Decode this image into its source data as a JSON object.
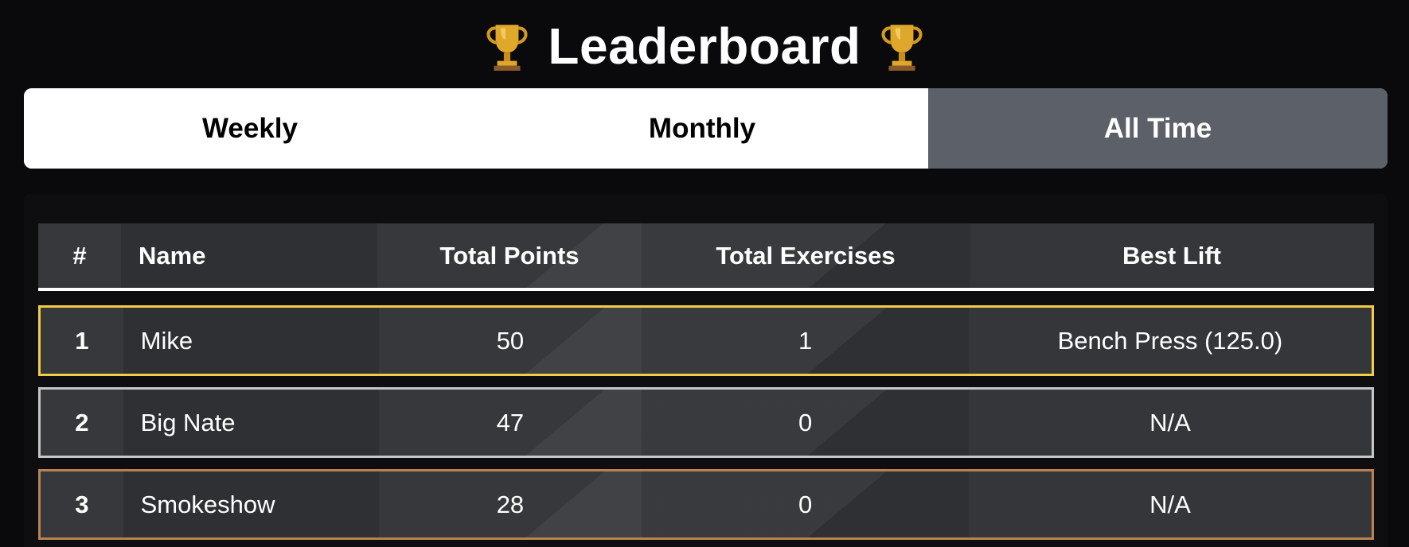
{
  "header": {
    "title": "Leaderboard",
    "trophy_icon": "trophy-icon"
  },
  "tabs": [
    {
      "label": "Weekly",
      "active": false
    },
    {
      "label": "Monthly",
      "active": false
    },
    {
      "label": "All Time",
      "active": true
    }
  ],
  "table": {
    "columns": [
      "#",
      "Name",
      "Total Points",
      "Total Exercises",
      "Best Lift"
    ],
    "rows": [
      {
        "rank": "1",
        "name": "Mike",
        "points": "50",
        "exercises": "1",
        "best_lift": "Bench Press (125.0)",
        "medal": "gold"
      },
      {
        "rank": "2",
        "name": "Big Nate",
        "points": "47",
        "exercises": "0",
        "best_lift": "N/A",
        "medal": "silver"
      },
      {
        "rank": "3",
        "name": "Smokeshow",
        "points": "28",
        "exercises": "0",
        "best_lift": "N/A",
        "medal": "bronze"
      }
    ]
  },
  "colors": {
    "gold": "#f2cd44",
    "silver": "#c6c6c8",
    "bronze": "#b9824f",
    "active_tab": "#5c6068"
  }
}
